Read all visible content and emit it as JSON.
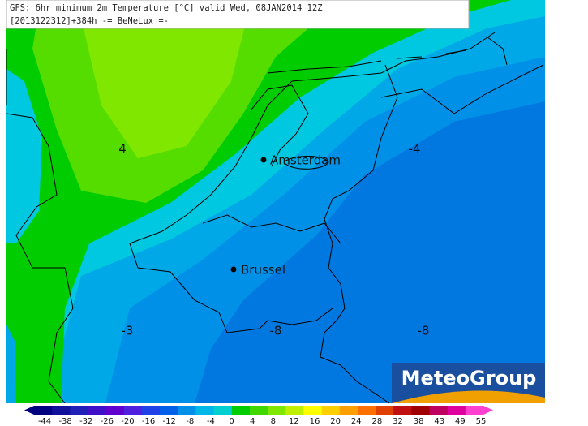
{
  "header": {
    "line1": "GFS: 6hr minimum 2m Temperature [°C] valid Wed, 08JAN2014 12Z",
    "line2": "[2013122312]+384h  -= BeNeLux =-"
  },
  "cities": [
    {
      "label": "Amsterdam"
    },
    {
      "label": "Brussel"
    }
  ],
  "contour_labels": [
    "4",
    "-4",
    "-3",
    "-8",
    "-8"
  ],
  "logo": "MeteoGroup",
  "legend": {
    "labels": [
      "-44",
      "-38",
      "-32",
      "-26",
      "-20",
      "-16",
      "-12",
      "-8",
      "-4",
      "0",
      "4",
      "8",
      "12",
      "16",
      "20",
      "24",
      "28",
      "32",
      "38",
      "43",
      "49",
      "55"
    ]
  }
}
